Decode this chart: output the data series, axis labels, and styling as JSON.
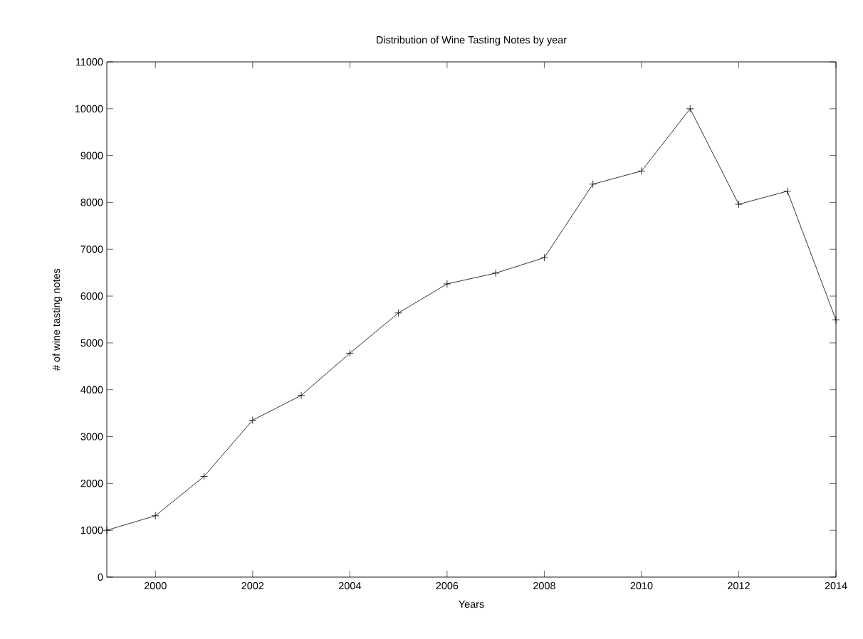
{
  "chart_data": {
    "type": "line",
    "title": "Distribution of Wine Tasting Notes by year",
    "xlabel": "Years",
    "ylabel": "# of wine tasting notes",
    "x": [
      1999,
      2000,
      2001,
      2002,
      2003,
      2004,
      2005,
      2006,
      2007,
      2008,
      2009,
      2010,
      2011,
      2012,
      2013,
      2014
    ],
    "series": [
      {
        "color": "#000000",
        "values": [
          1000,
          1310,
          2150,
          3350,
          3880,
          4780,
          5640,
          6260,
          6490,
          6820,
          8390,
          8670,
          10000,
          7960,
          8240,
          5490
        ]
      }
    ],
    "xlim": [
      1999,
      2014
    ],
    "ylim": [
      0,
      11000
    ],
    "xticks": [
      2000,
      2002,
      2004,
      2006,
      2008,
      2010,
      2012,
      2014
    ],
    "yticks": [
      0,
      1000,
      2000,
      3000,
      4000,
      5000,
      6000,
      7000,
      8000,
      9000,
      10000,
      11000
    ],
    "grid": false,
    "marker": "cross",
    "line_style": "solid"
  }
}
